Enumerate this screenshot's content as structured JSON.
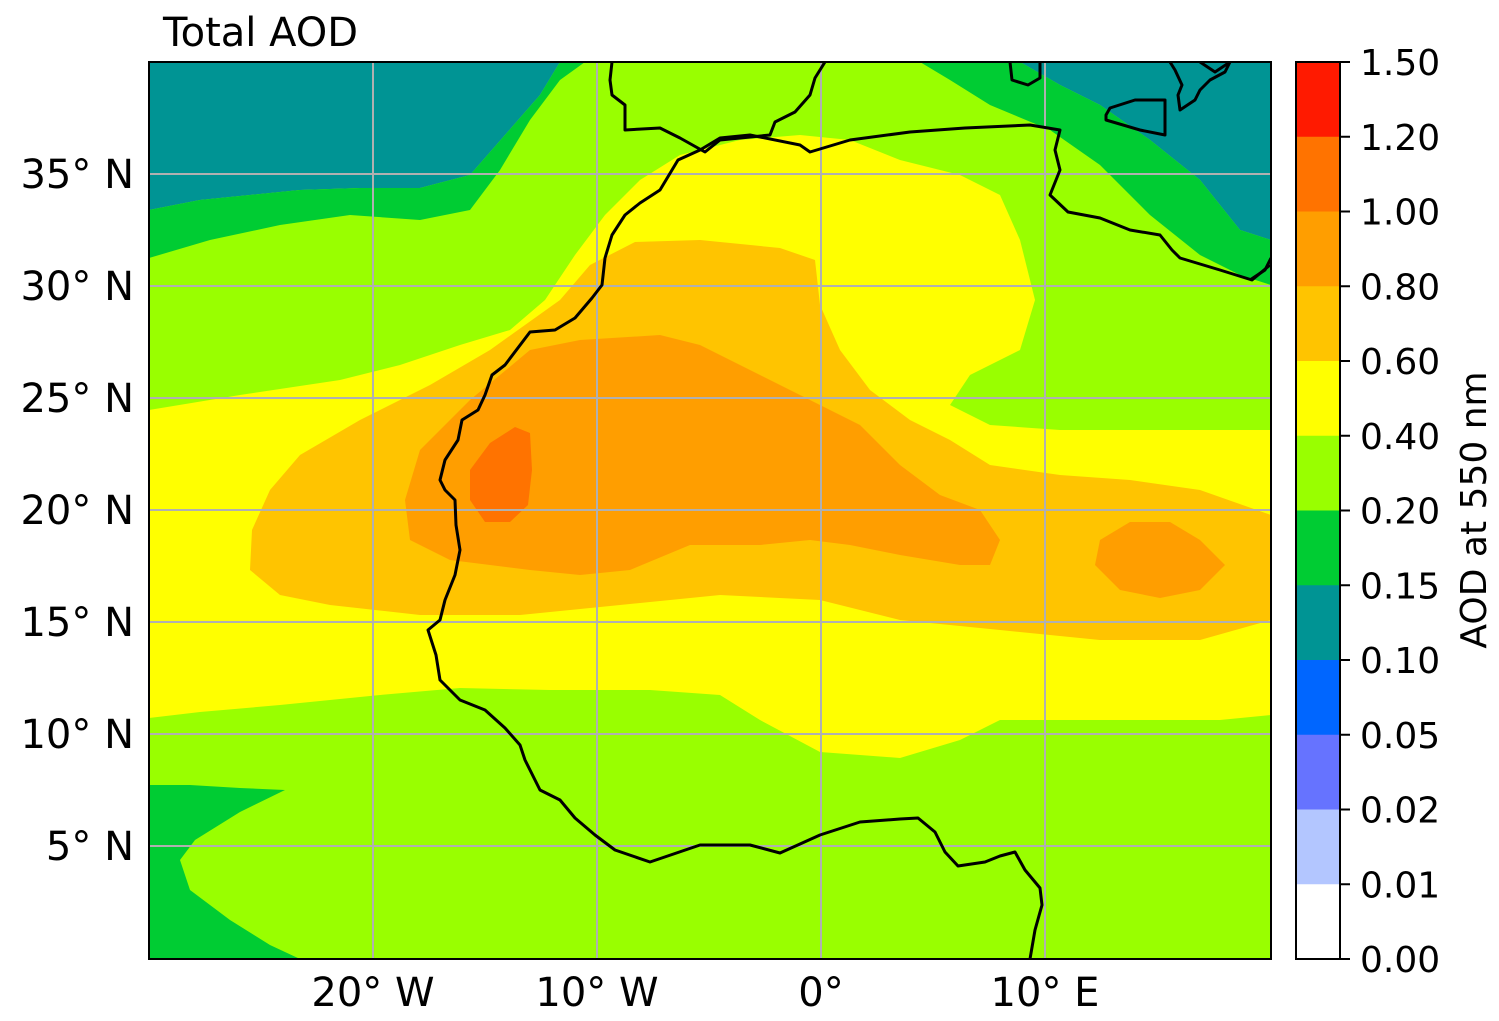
{
  "title": "Total AOD",
  "map": {
    "lat_labels": [
      "35° N",
      "30° N",
      "25° N",
      "20° N",
      "15° N",
      "10° N",
      "5° N"
    ],
    "lon_labels": [
      "20° W",
      "10° W",
      "0°",
      "10° E"
    ],
    "gridlines": true
  },
  "colorbar": {
    "label": "AOD at 550 nm",
    "ticks": [
      "1.50",
      "1.20",
      "1.00",
      "0.80",
      "0.60",
      "0.40",
      "0.20",
      "0.15",
      "0.10",
      "0.05",
      "0.02",
      "0.01",
      "0.00"
    ],
    "colors": [
      "#ff1a00",
      "#ff7300",
      "#ff9e00",
      "#ffc400",
      "#ffff00",
      "#99ff00",
      "#00cc33",
      "#009494",
      "#0066ff",
      "#6673ff",
      "#b3c6ff",
      "#ffffff"
    ]
  },
  "fills": {
    "teal": "#009494",
    "dkgreen": "#00cc33",
    "ltgreen": "#99ff00",
    "yellow": "#ffff00",
    "ltorange": "#ffc400",
    "orange": "#ff9e00",
    "dkorange": "#ff7300",
    "coast": "#000000",
    "grid": "#b0b0b0"
  }
}
